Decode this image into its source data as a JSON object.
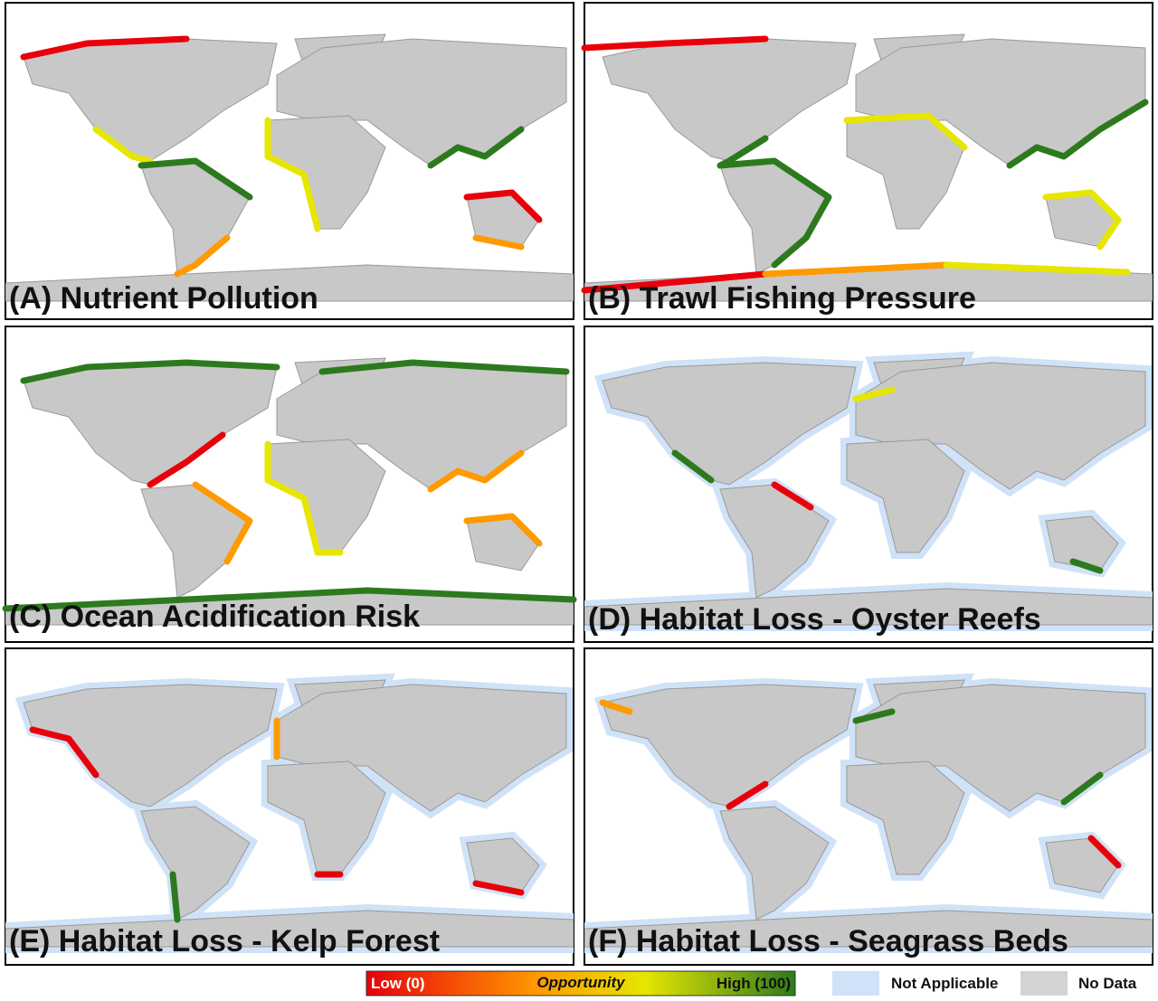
{
  "panels": [
    {
      "title": "(A) Nutrient Pollution"
    },
    {
      "title": "(B) Trawl Fishing Pressure"
    },
    {
      "title": "(C) Ocean Acidification Risk"
    },
    {
      "title": "(D) Habitat Loss - Oyster Reefs"
    },
    {
      "title": "(E) Habitat Loss - Kelp Forest"
    },
    {
      "title": "(F) Habitat Loss - Seagrass Beds"
    }
  ],
  "legend": {
    "low": "Low (0)",
    "title": "Opportunity",
    "high": "High (100)",
    "not_applicable": "Not Applicable",
    "no_data": "No Data"
  }
}
